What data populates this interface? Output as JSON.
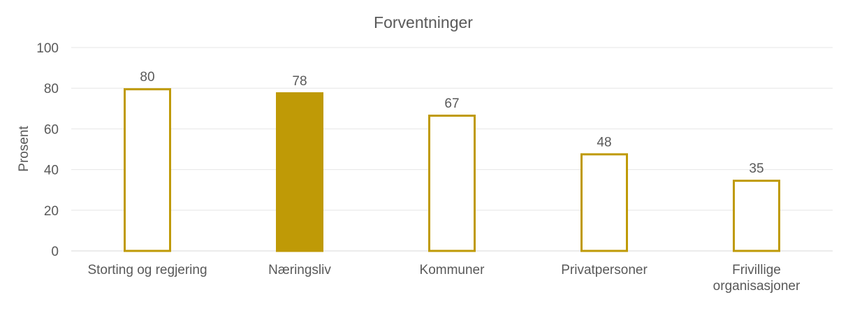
{
  "chart_data": {
    "type": "bar",
    "title": "Forventninger",
    "ylabel": "Prosent",
    "xlabel": "",
    "ylim": [
      0,
      100
    ],
    "yticks": [
      0,
      20,
      40,
      60,
      80,
      100
    ],
    "categories": [
      [
        "Storting og regjering"
      ],
      [
        "Næringsliv"
      ],
      [
        "Kommuner"
      ],
      [
        "Privatpersoner"
      ],
      [
        "Frivillige",
        "organisasjoner"
      ]
    ],
    "values": [
      80,
      78,
      67,
      48,
      35
    ],
    "filled": [
      false,
      true,
      false,
      false,
      false
    ],
    "bar_color": "#BF9A06",
    "grid": true,
    "legend": "none"
  }
}
